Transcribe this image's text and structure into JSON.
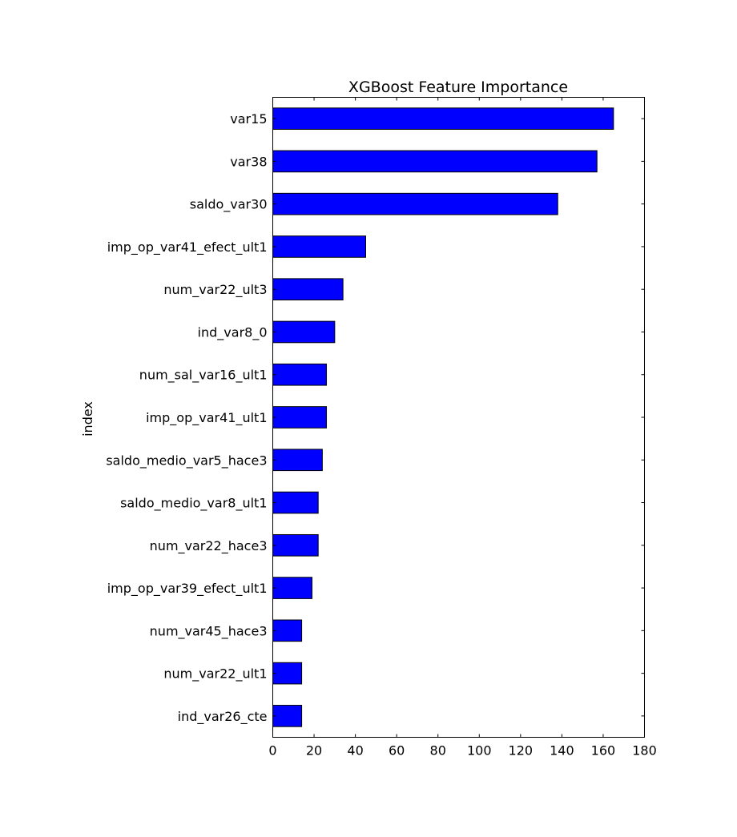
{
  "chart_data": {
    "type": "bar",
    "orientation": "horizontal",
    "title": "XGBoost Feature Importance",
    "xlabel": "",
    "ylabel": "index",
    "xlim": [
      0,
      180
    ],
    "xticks": [
      0,
      20,
      40,
      60,
      80,
      100,
      120,
      140,
      160,
      180
    ],
    "grid": false,
    "legend": "none",
    "bar_color": "#0000ff",
    "categories": [
      "var15",
      "var38",
      "saldo_var30",
      "imp_op_var41_efect_ult1",
      "num_var22_ult3",
      "ind_var8_0",
      "num_sal_var16_ult1",
      "imp_op_var41_ult1",
      "saldo_medio_var5_hace3",
      "saldo_medio_var8_ult1",
      "num_var22_hace3",
      "imp_op_var39_efect_ult1",
      "num_var45_hace3",
      "num_var22_ult1",
      "ind_var26_cte"
    ],
    "values": [
      165,
      157,
      138,
      45,
      34,
      30,
      26,
      26,
      24,
      22,
      22,
      19,
      14,
      14,
      14
    ]
  }
}
